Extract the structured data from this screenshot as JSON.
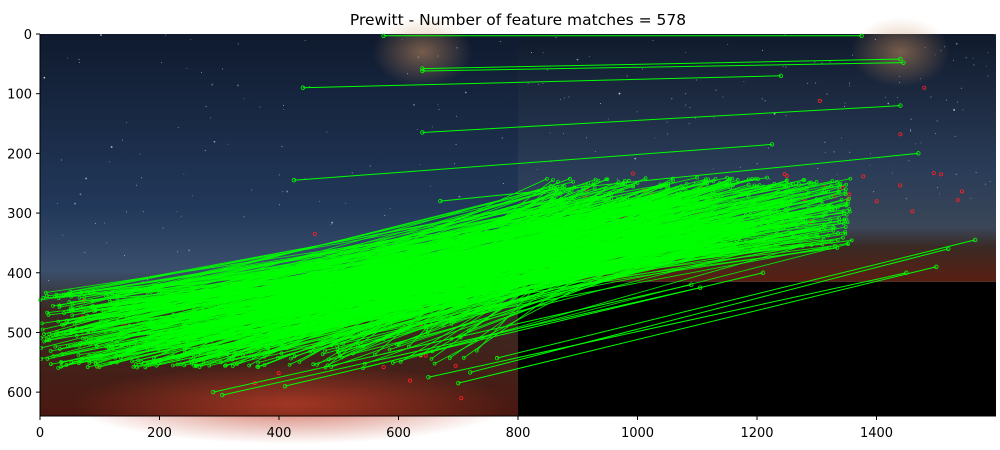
{
  "chart_data": {
    "type": "scatter",
    "title": "Prewitt - Number of feature matches = 578",
    "xlabel": "",
    "ylabel": "",
    "xlim": [
      0,
      1600
    ],
    "ylim": [
      640,
      0
    ],
    "xticks": [
      "0",
      "200",
      "400",
      "600",
      "800",
      "1000",
      "1200",
      "1400"
    ],
    "yticks": [
      "0",
      "100",
      "200",
      "300",
      "400",
      "500",
      "600"
    ],
    "xtick_values": [
      0,
      200,
      400,
      600,
      800,
      1000,
      1200,
      1400
    ],
    "ytick_values": [
      0,
      100,
      200,
      300,
      400,
      500,
      600
    ],
    "grid": false,
    "background_image": "two night-sky landscape photos stitched side by side: left image 800 px wide x 640 px tall, right image 800 px wide x 415 px tall with black padding below",
    "match_line_color": "#00ff00",
    "unmatched_keypoint_color": "#ff2020",
    "match_count": 578,
    "highlighted_matches": [
      {
        "x1": 575,
        "y1": 3,
        "x2": 1375,
        "y2": 3
      },
      {
        "x1": 640,
        "y1": 58,
        "x2": 1440,
        "y2": 42
      },
      {
        "x1": 640,
        "y1": 62,
        "x2": 1445,
        "y2": 48
      },
      {
        "x1": 440,
        "y1": 90,
        "x2": 1240,
        "y2": 70
      },
      {
        "x1": 640,
        "y1": 165,
        "x2": 1440,
        "y2": 120
      },
      {
        "x1": 425,
        "y1": 245,
        "x2": 1225,
        "y2": 185
      },
      {
        "x1": 670,
        "y1": 280,
        "x2": 1470,
        "y2": 200
      },
      {
        "x1": 290,
        "y1": 600,
        "x2": 1090,
        "y2": 420
      },
      {
        "x1": 305,
        "y1": 605,
        "x2": 1105,
        "y2": 425
      },
      {
        "x1": 700,
        "y1": 585,
        "x2": 1500,
        "y2": 390
      },
      {
        "x1": 720,
        "y1": 567,
        "x2": 1520,
        "y2": 360
      },
      {
        "x1": 650,
        "y1": 575,
        "x2": 1450,
        "y2": 400
      },
      {
        "x1": 410,
        "y1": 590,
        "x2": 1210,
        "y2": 400
      },
      {
        "x1": 765,
        "y1": 543,
        "x2": 1565,
        "y2": 345
      },
      {
        "x1": 170,
        "y1": 550,
        "x2": 970,
        "y2": 385
      },
      {
        "x1": 195,
        "y1": 555,
        "x2": 995,
        "y2": 380
      }
    ],
    "match_cluster": {
      "left_region": {
        "x": [
          0,
          800
        ],
        "y": [
          430,
          560
        ]
      },
      "right_region": {
        "x": [
          800,
          1600
        ],
        "y": [
          240,
          420
        ]
      }
    }
  }
}
